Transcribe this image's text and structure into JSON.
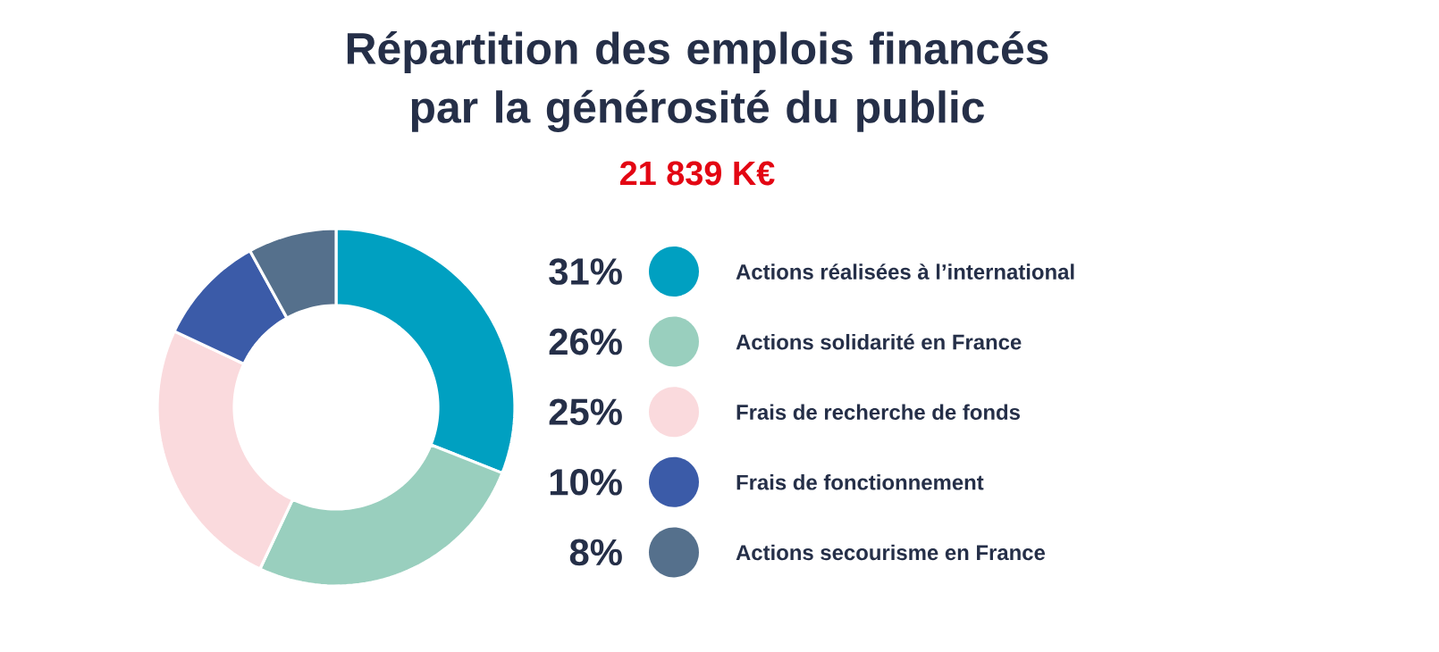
{
  "chart_data": {
    "type": "donut",
    "title": "Répartition des emplois financés par la générosité du public",
    "subtitle": "21 839 K€",
    "categories": [
      "Actions réalisées à l’international",
      "Actions solidarité en France",
      "Frais de recherche de fonds",
      "Frais de fonctionnement",
      "Actions secourisme en France"
    ],
    "values": [
      31,
      26,
      25,
      10,
      8
    ],
    "value_labels": [
      "31%",
      "26%",
      "25%",
      "10%",
      "8%"
    ],
    "colors": [
      "#00a0c1",
      "#99cfbe",
      "#fadadd",
      "#3b5ba8",
      "#55708c"
    ],
    "legend": "right"
  }
}
